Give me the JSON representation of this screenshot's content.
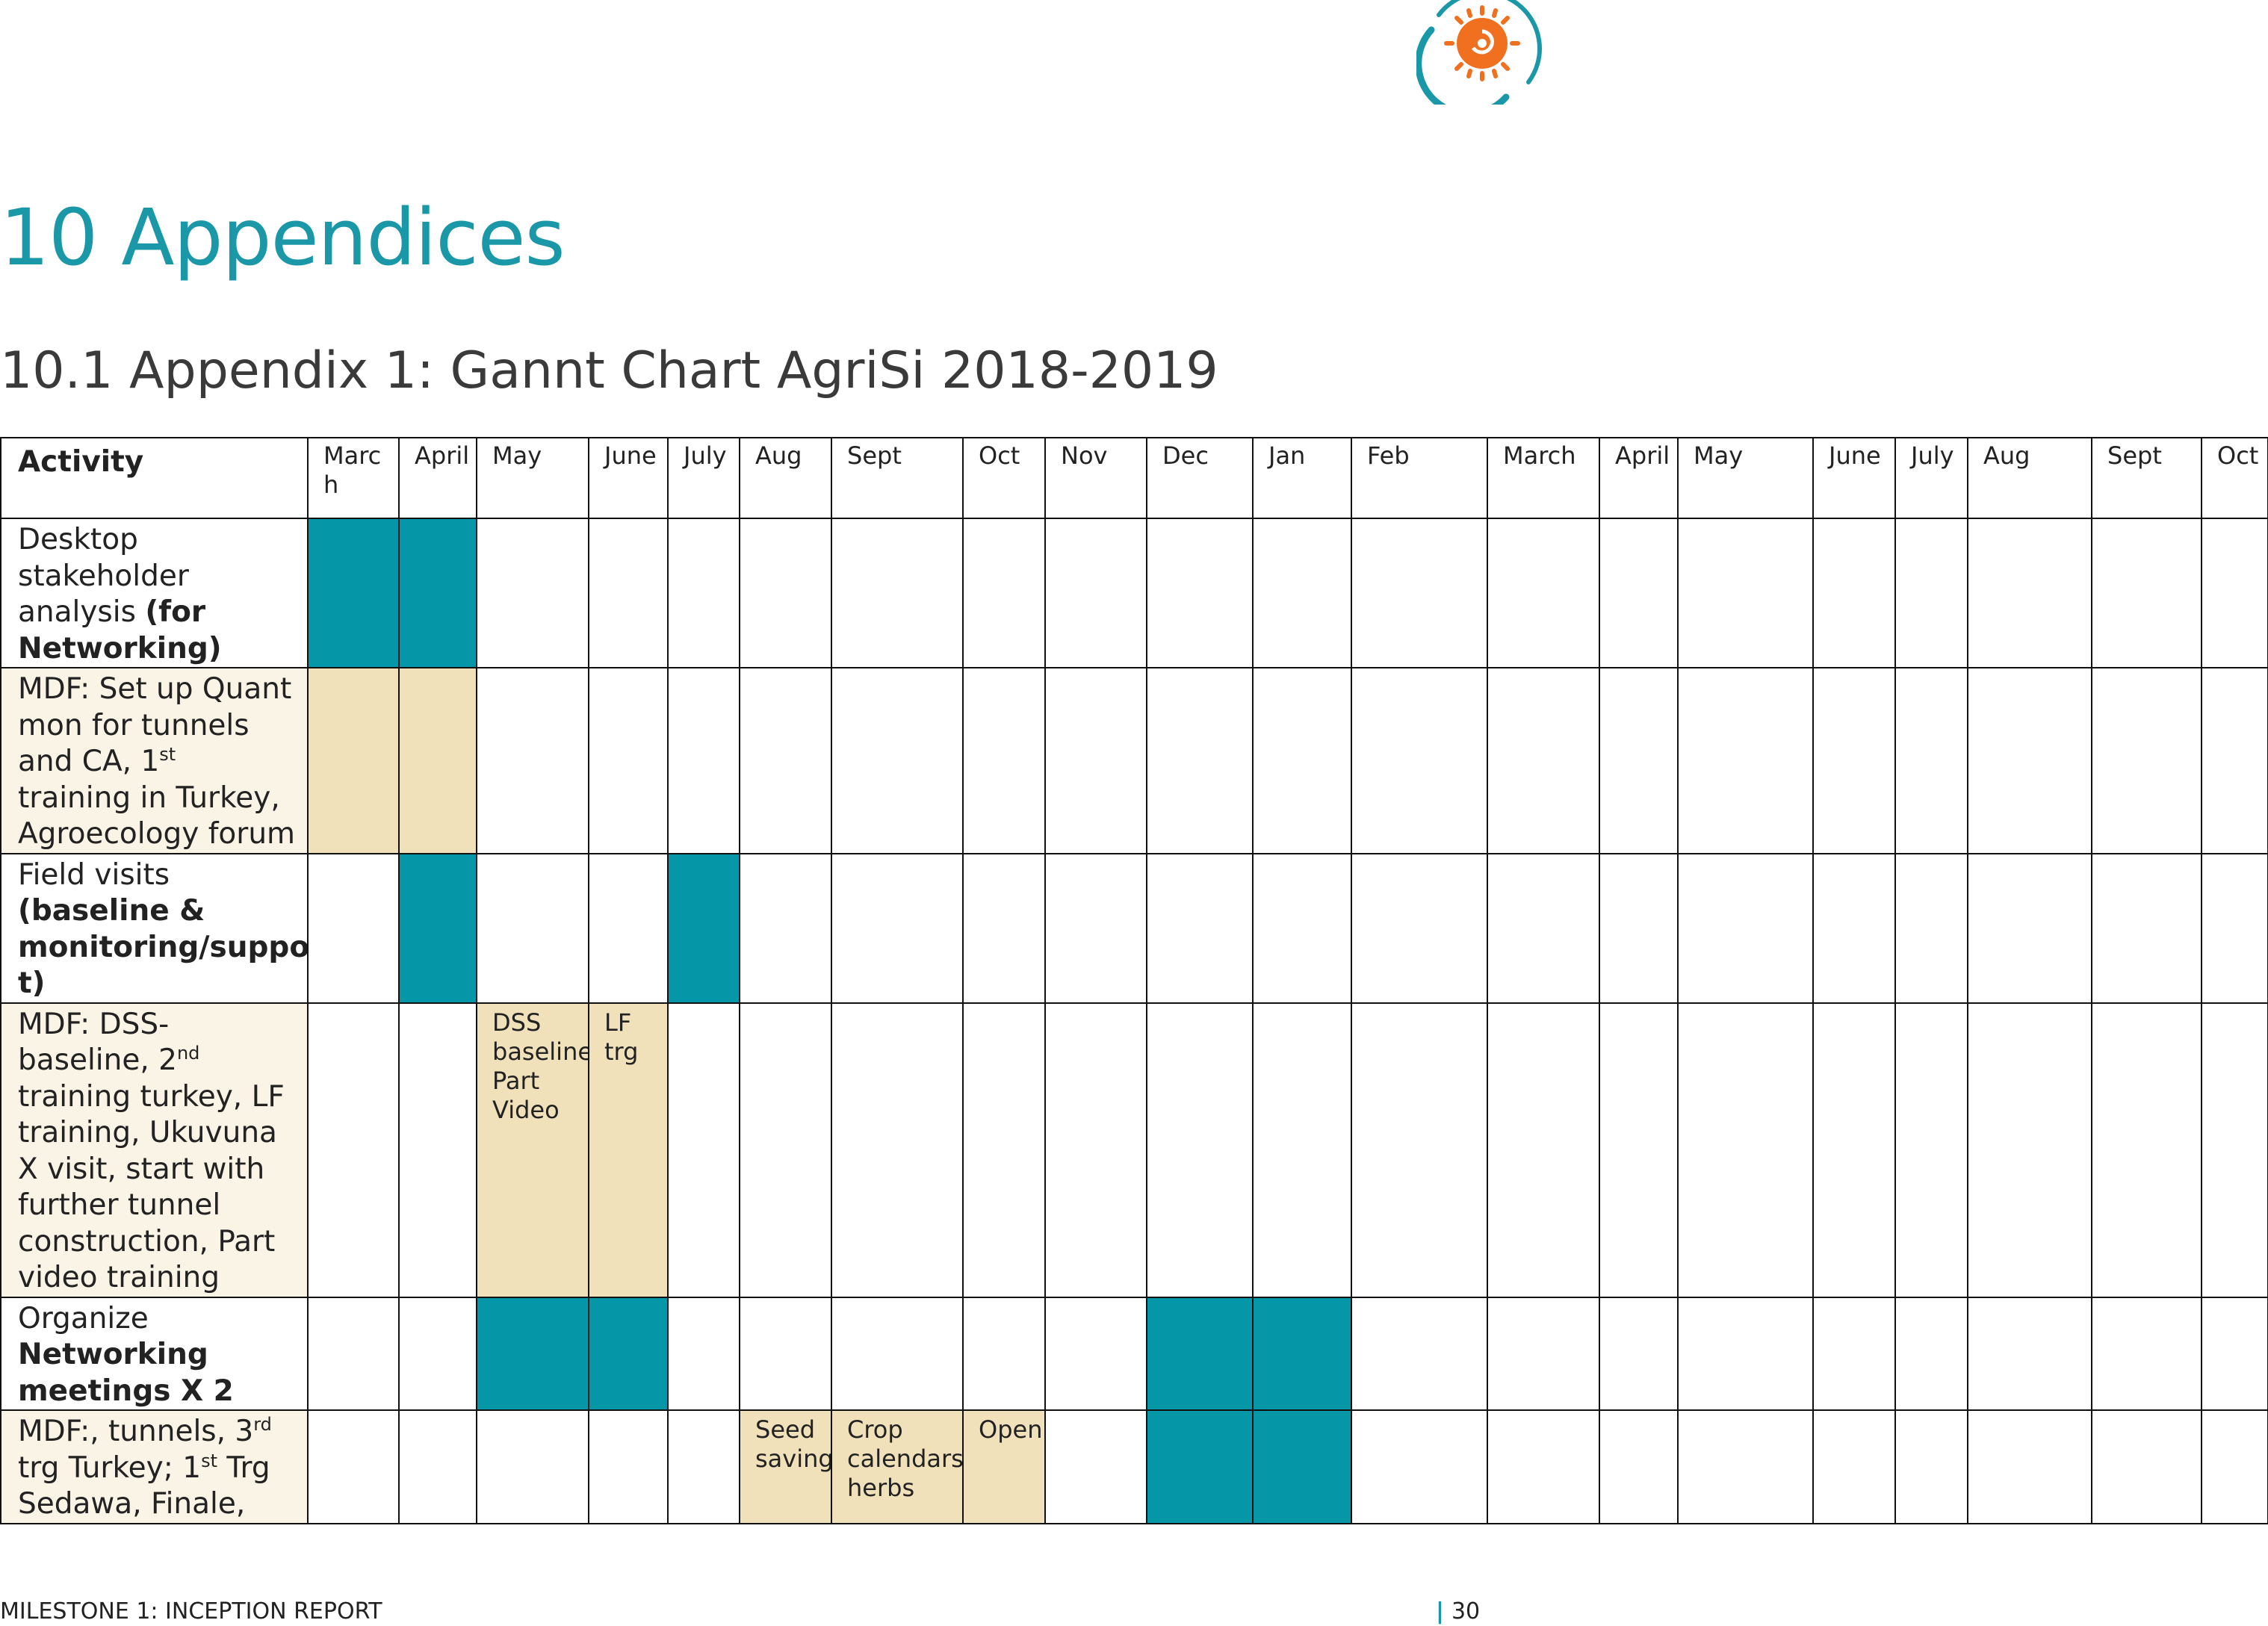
{
  "logo": {
    "icon": "sun-logo-icon",
    "colors": [
      "#f07020",
      "#1a98a8"
    ]
  },
  "heading": "10 Appendices",
  "subheading": "10.1 Appendix 1: Gannt Chart AgriSi 2018-2019",
  "table": {
    "header_activity": "Activity",
    "months": [
      "March",
      "April",
      "May",
      "June",
      "July",
      "Aug",
      "Sept",
      "Oct",
      "Nov",
      "Dec",
      "Jan",
      "Feb",
      "March",
      "April",
      "May",
      "June",
      "July",
      "Aug",
      "Sept",
      "Oct"
    ],
    "rows": [
      {
        "pre": "Desktop stakeholder analysis ",
        "bold": "(for Networking)"
      },
      {
        "lines": [
          "MDF: Set up Quant mon for tunnels and CA, 1",
          "st",
          " training in Turkey, Agroecology forum"
        ]
      },
      {
        "pre": "Field visits ",
        "bold": "(baseline & monitoring/suppor t)"
      },
      {
        "lines": [
          "MDF: DSS-baseline, 2",
          "nd",
          " training turkey, LF training, Ukuvuna X visit, start with further tunnel construction, Part video training"
        ]
      },
      {
        "pre": "Organize ",
        "bold": "Networking meetings X 2"
      },
      {
        "lines": [
          "MDF:, tunnels, 3",
          "rd",
          " trg Turkey; 1",
          "st",
          " Trg Sedawa, Finale,"
        ]
      }
    ],
    "notes": {
      "dss": "DSS baseline Part Video",
      "lf": "LF trg",
      "seed": "Seed saving",
      "crop": "Crop calendars, herbs",
      "open": "Open"
    }
  },
  "colors": {
    "teal": "#0596a8",
    "tan": "#f1e1ba",
    "lighttan": "#faf4e6",
    "heading": "#1a98a8"
  },
  "footer": {
    "left": "MILESTONE 1: INCEPTION REPORT",
    "bar": "|",
    "page": "30"
  }
}
